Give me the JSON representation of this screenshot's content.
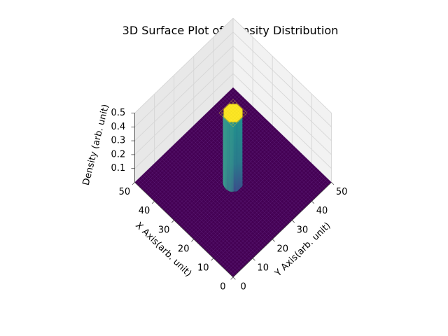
{
  "chart_data": {
    "type": "surface",
    "title": "3D Surface Plot of Density Distribution",
    "xlabel": "X Axis(arb. unit)",
    "ylabel": "Y Axis(arb. unit)",
    "zlabel": "Density (arb. unit)",
    "xlim": [
      0,
      50
    ],
    "ylim": [
      0,
      50
    ],
    "zlim": [
      0,
      0.5
    ],
    "x_ticks": [
      0,
      10,
      20,
      30,
      40,
      50
    ],
    "y_ticks": [
      0,
      10,
      20,
      30,
      40,
      50
    ],
    "z_ticks": [
      0.1,
      0.2,
      0.3,
      0.4,
      0.5
    ],
    "colormap": "viridis",
    "grid": true,
    "surface": {
      "background_density": 0,
      "peak_density": 0.5,
      "peak_center": [
        25,
        25
      ],
      "peak_radius": 3.6,
      "description_levels": [
        "0 (dark purple)",
        "0.5 (yellow)"
      ]
    },
    "colors": {
      "low": "#440154",
      "mid": "#21908d",
      "high": "#fde725",
      "pane": "#f2f2f2",
      "grid": "#d6d6d6"
    }
  }
}
